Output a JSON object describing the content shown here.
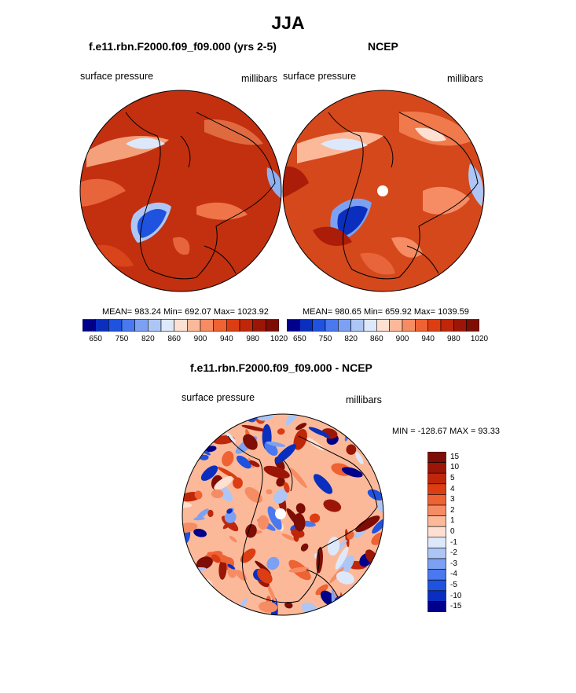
{
  "main_title": "JJA",
  "panels": [
    {
      "title": "f.e11.rbn.F2000.f09_f09.000 (yrs 2-5)",
      "variable": "surface pressure",
      "units": "millibars",
      "stats": "MEAN= 983.24  Min= 692.07  Max= 1023.92"
    },
    {
      "title": "NCEP",
      "variable": "surface pressure",
      "units": "millibars",
      "stats": "MEAN= 980.65  Min= 659.92  Max= 1039.59"
    }
  ],
  "abs_colorbar": {
    "tick_labels": [
      "650",
      "750",
      "820",
      "860",
      "900",
      "940",
      "980",
      "1020"
    ],
    "colors": [
      "#00008b",
      "#0a2fbf",
      "#1f52de",
      "#4a78ee",
      "#7da1f2",
      "#aec6f5",
      "#dde9fb",
      "#fde0d2",
      "#fbb99a",
      "#f68c63",
      "#ee6233",
      "#dc3d12",
      "#bf270a",
      "#9b1607",
      "#7d0d05"
    ]
  },
  "diff_panel": {
    "title": "f.e11.rbn.F2000.f09_f09.000 - NCEP",
    "variable": "surface pressure",
    "units": "millibars",
    "stats": "MIN = -128.67 MAX =  93.33"
  },
  "diff_colorbar": {
    "labels": [
      "15",
      "10",
      "5",
      "4",
      "3",
      "2",
      "1",
      "0",
      "-1",
      "-2",
      "-3",
      "-4",
      "-5",
      "-10",
      "-15"
    ],
    "colors": [
      "#7d0d05",
      "#9b1607",
      "#bf270a",
      "#dc3d12",
      "#ee6233",
      "#f68c63",
      "#fbb99a",
      "#fde0d2",
      "#dde9fb",
      "#aec6f5",
      "#7da1f2",
      "#4a78ee",
      "#1f52de",
      "#0a2fbf",
      "#00008b"
    ]
  }
}
